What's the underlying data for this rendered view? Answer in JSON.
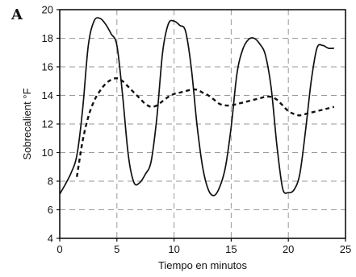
{
  "chart_data": {
    "type": "line",
    "panel_label": "A",
    "title": "",
    "xlabel": "Tiempo en minutos",
    "ylabel": "Sobrecalient °F",
    "xlim": [
      0,
      25
    ],
    "ylim": [
      4,
      20
    ],
    "xticks": [
      "0",
      "5",
      "10",
      "15",
      "20",
      "25"
    ],
    "yticks": [
      "4",
      "6",
      "8",
      "10",
      "12",
      "14",
      "16",
      "18",
      "20"
    ],
    "grid": true,
    "legend": "none",
    "series": [
      {
        "style": "solid",
        "color": "#111111",
        "x": [
          0,
          0.5,
          1,
          1.5,
          2,
          2.5,
          3,
          3.5,
          4,
          4.5,
          5,
          5.5,
          6,
          6.5,
          7,
          7.5,
          8,
          8.5,
          9,
          9.5,
          10,
          10.5,
          11,
          11.5,
          12,
          12.5,
          13,
          13.5,
          14,
          14.5,
          15,
          15.5,
          16,
          16.5,
          17,
          17.5,
          18,
          18.5,
          19,
          19.5,
          20,
          20.5,
          21,
          21.5,
          22,
          22.5,
          23,
          23.5,
          24
        ],
        "y": [
          7.1,
          7.8,
          8.6,
          9.8,
          13.0,
          17.5,
          19.2,
          19.4,
          19.0,
          18.3,
          17.5,
          14.0,
          9.8,
          7.9,
          7.9,
          8.5,
          9.4,
          12.5,
          17.0,
          19.0,
          19.2,
          18.9,
          18.5,
          16.0,
          12.0,
          9.0,
          7.4,
          7.0,
          7.6,
          9.0,
          11.8,
          15.5,
          17.2,
          17.9,
          18.0,
          17.6,
          16.8,
          14.5,
          10.5,
          7.5,
          7.2,
          7.4,
          8.5,
          11.5,
          15.0,
          17.3,
          17.5,
          17.3,
          17.3
        ]
      },
      {
        "style": "dashed",
        "color": "#111111",
        "x": [
          1.5,
          2,
          2.5,
          3,
          3.5,
          4,
          4.5,
          5,
          5.5,
          6,
          6.5,
          7,
          7.5,
          8,
          8.5,
          9,
          9.5,
          10,
          10.5,
          11,
          11.5,
          12,
          12.5,
          13,
          13.5,
          14,
          14.5,
          15,
          15.5,
          16,
          16.5,
          17,
          17.5,
          18,
          18.5,
          19,
          19.5,
          20,
          20.5,
          21,
          21.5,
          22,
          22.5,
          23,
          23.5,
          24
        ],
        "y": [
          8.3,
          10.8,
          12.5,
          13.6,
          14.3,
          14.8,
          15.1,
          15.2,
          15.0,
          14.6,
          14.2,
          13.8,
          13.4,
          13.2,
          13.3,
          13.6,
          13.9,
          14.1,
          14.2,
          14.3,
          14.4,
          14.4,
          14.2,
          14.0,
          13.7,
          13.4,
          13.3,
          13.3,
          13.4,
          13.5,
          13.6,
          13.7,
          13.8,
          13.9,
          13.9,
          13.7,
          13.3,
          12.9,
          12.7,
          12.6,
          12.7,
          12.8,
          12.9,
          13.0,
          13.1,
          13.2
        ]
      }
    ]
  }
}
